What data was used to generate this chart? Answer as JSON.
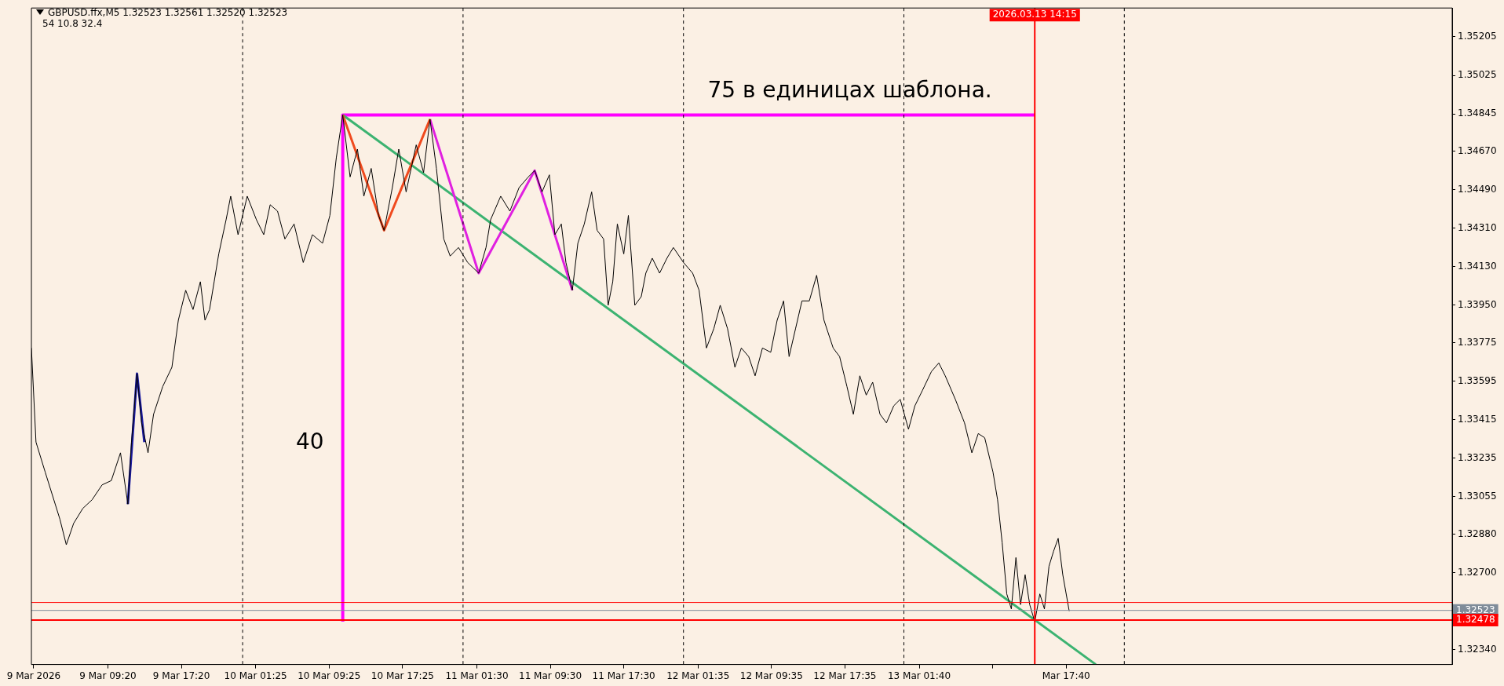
{
  "chart_data": {
    "type": "line",
    "title": "GBPUSD.ffx,M5  1.32523 1.32561 1.32520 1.32523",
    "subtitle": "54  10.8  32.4",
    "xlim": [
      "2026-03-09T01:00",
      "2026-03-15T11:42"
    ],
    "ylim": [
      1.3227,
      1.3534
    ],
    "xticks": [
      {
        "value": "2026-03-09T01:15",
        "label": "9 Mar 2026"
      },
      {
        "value": "2026-03-09T09:20",
        "label": "9 Mar 09:20"
      },
      {
        "value": "2026-03-09T17:20",
        "label": "9 Mar 17:20"
      },
      {
        "value": "2026-03-10T01:25",
        "label": "10 Mar 01:25"
      },
      {
        "value": "2026-03-10T09:25",
        "label": "10 Mar 09:25"
      },
      {
        "value": "2026-03-10T17:25",
        "label": "10 Mar 17:25"
      },
      {
        "value": "2026-03-11T01:30",
        "label": "11 Mar 01:30"
      },
      {
        "value": "2026-03-11T09:30",
        "label": "11 Mar 09:30"
      },
      {
        "value": "2026-03-11T17:30",
        "label": "11 Mar 17:30"
      },
      {
        "value": "2026-03-12T01:35",
        "label": "12 Mar 01:35"
      },
      {
        "value": "2026-03-12T09:35",
        "label": "12 Mar 09:35"
      },
      {
        "value": "2026-03-12T17:35",
        "label": "12 Mar 17:35"
      },
      {
        "value": "2026-03-13T01:40",
        "label": "13 Mar 01:40"
      },
      {
        "value": "2026-03-13T09:40",
        "label": null
      },
      {
        "value": "2026-03-13T17:40",
        "label": "Mar 17:40"
      }
    ],
    "yticks": [
      {
        "value": 1.35205,
        "label": "1.35205"
      },
      {
        "value": 1.35025,
        "label": "1.35025"
      },
      {
        "value": 1.34845,
        "label": "1.34845"
      },
      {
        "value": 1.3467,
        "label": "1.34670"
      },
      {
        "value": 1.3449,
        "label": "1.34490"
      },
      {
        "value": 1.3431,
        "label": "1.34310"
      },
      {
        "value": 1.3413,
        "label": "1.34130"
      },
      {
        "value": 1.3395,
        "label": "1.33950"
      },
      {
        "value": 1.33775,
        "label": "1.33775"
      },
      {
        "value": 1.33595,
        "label": "1.33595"
      },
      {
        "value": 1.33415,
        "label": "1.33415"
      },
      {
        "value": 1.33235,
        "label": "1.33235"
      },
      {
        "value": 1.33055,
        "label": "1.33055"
      },
      {
        "value": 1.3288,
        "label": "1.32880"
      },
      {
        "value": 1.327,
        "label": "1.32700"
      },
      {
        "value": 1.3234,
        "label": "1.32340"
      }
    ],
    "grid": false,
    "legend": false,
    "marker": "none",
    "series": [
      {
        "color": "#000000",
        "x": [
          "2026-03-09T01:00",
          "2026-03-09T01:30",
          "2026-03-09T02:30",
          "2026-03-09T04:06",
          "2026-03-09T04:48",
          "2026-03-09T05:36",
          "2026-03-09T06:36",
          "2026-03-09T07:36",
          "2026-03-09T08:42",
          "2026-03-09T09:42",
          "2026-03-09T10:42",
          "2026-03-09T11:30",
          "2026-03-09T11:54",
          "2026-03-09T12:30",
          "2026-03-09T13:00",
          "2026-03-09T13:42",
          "2026-03-09T14:18",
          "2026-03-09T15:18",
          "2026-03-09T16:18",
          "2026-03-09T17:00",
          "2026-03-09T17:48",
          "2026-03-09T18:36",
          "2026-03-09T19:24",
          "2026-03-09T19:54",
          "2026-03-09T20:24",
          "2026-03-09T20:54",
          "2026-03-09T21:24",
          "2026-03-09T22:12",
          "2026-03-09T22:42",
          "2026-03-09T23:30",
          "2026-03-10T00:30",
          "2026-03-10T01:30",
          "2026-03-10T02:18",
          "2026-03-10T03:00",
          "2026-03-10T03:48",
          "2026-03-10T04:36",
          "2026-03-10T05:36",
          "2026-03-10T06:36",
          "2026-03-10T07:36",
          "2026-03-10T08:42",
          "2026-03-10T09:30",
          "2026-03-10T10:12",
          "2026-03-10T10:54",
          "2026-03-10T11:42",
          "2026-03-10T12:30",
          "2026-03-10T13:12",
          "2026-03-10T14:00",
          "2026-03-10T14:48",
          "2026-03-10T15:24",
          "2026-03-10T16:18",
          "2026-03-10T17:00",
          "2026-03-10T17:48",
          "2026-03-10T18:54",
          "2026-03-10T19:42",
          "2026-03-10T20:24",
          "2026-03-10T21:06",
          "2026-03-10T21:54",
          "2026-03-10T22:36",
          "2026-03-10T23:30",
          "2026-03-11T00:30",
          "2026-03-11T01:42",
          "2026-03-11T02:30",
          "2026-03-11T03:00",
          "2026-03-11T04:06",
          "2026-03-11T05:06",
          "2026-03-11T06:06",
          "2026-03-11T07:06",
          "2026-03-11T07:48",
          "2026-03-11T08:36",
          "2026-03-11T09:24",
          "2026-03-11T10:00",
          "2026-03-11T10:42",
          "2026-03-11T11:12",
          "2026-03-11T11:54",
          "2026-03-11T12:30",
          "2026-03-11T13:12",
          "2026-03-11T14:00",
          "2026-03-11T14:36",
          "2026-03-11T15:18",
          "2026-03-11T15:48",
          "2026-03-11T16:18",
          "2026-03-11T16:48",
          "2026-03-11T17:30",
          "2026-03-11T18:00",
          "2026-03-11T18:42",
          "2026-03-11T19:24",
          "2026-03-11T19:54",
          "2026-03-11T20:36",
          "2026-03-11T21:24",
          "2026-03-11T22:12",
          "2026-03-11T22:54",
          "2026-03-12T00:00",
          "2026-03-12T01:00",
          "2026-03-12T01:42",
          "2026-03-12T02:30",
          "2026-03-12T03:18",
          "2026-03-12T04:00",
          "2026-03-12T04:48",
          "2026-03-12T05:36",
          "2026-03-12T06:18",
          "2026-03-12T07:06",
          "2026-03-12T07:48",
          "2026-03-12T08:36",
          "2026-03-12T09:30",
          "2026-03-12T10:12",
          "2026-03-12T10:54",
          "2026-03-12T11:30",
          "2026-03-12T12:12",
          "2026-03-12T12:54",
          "2026-03-12T13:42",
          "2026-03-12T14:30",
          "2026-03-12T15:18",
          "2026-03-12T16:18",
          "2026-03-12T17:00",
          "2026-03-12T17:48",
          "2026-03-12T18:30",
          "2026-03-12T19:12",
          "2026-03-12T19:54",
          "2026-03-12T20:36",
          "2026-03-12T21:24",
          "2026-03-12T22:06",
          "2026-03-12T22:54",
          "2026-03-12T23:36",
          "2026-03-13T00:30",
          "2026-03-13T01:12",
          "2026-03-13T02:00",
          "2026-03-13T03:00",
          "2026-03-13T03:48",
          "2026-03-13T04:30",
          "2026-03-13T05:36",
          "2026-03-13T06:36",
          "2026-03-13T07:24",
          "2026-03-13T08:06",
          "2026-03-13T08:48",
          "2026-03-13T09:42",
          "2026-03-13T10:12",
          "2026-03-13T10:42",
          "2026-03-13T11:12",
          "2026-03-13T11:42",
          "2026-03-13T12:12",
          "2026-03-13T12:42",
          "2026-03-13T13:12",
          "2026-03-13T13:42",
          "2026-03-13T14:15",
          "2026-03-13T14:48",
          "2026-03-13T15:18",
          "2026-03-13T15:48",
          "2026-03-13T16:18",
          "2026-03-13T16:48",
          "2026-03-13T17:18",
          "2026-03-13T18:00"
        ],
        "values": [
          1.3375,
          1.3331,
          1.3317,
          1.3295,
          1.3283,
          1.3293,
          1.33,
          1.3304,
          1.3311,
          1.3313,
          1.3326,
          1.3302,
          1.3331,
          1.3363,
          1.334,
          1.3326,
          1.3344,
          1.3357,
          1.3366,
          1.3388,
          1.3402,
          1.3393,
          1.3406,
          1.3388,
          1.3393,
          1.3406,
          1.3419,
          1.3435,
          1.3446,
          1.3428,
          1.3446,
          1.3435,
          1.3428,
          1.3442,
          1.3439,
          1.3426,
          1.3433,
          1.3415,
          1.3428,
          1.3424,
          1.3437,
          1.3464,
          1.3484,
          1.3455,
          1.3468,
          1.3446,
          1.3459,
          1.3437,
          1.343,
          1.345,
          1.3468,
          1.3448,
          1.347,
          1.3457,
          1.3482,
          1.3459,
          1.3426,
          1.3418,
          1.3422,
          1.3415,
          1.341,
          1.3422,
          1.3435,
          1.3446,
          1.3439,
          1.345,
          1.3455,
          1.3458,
          1.3448,
          1.3456,
          1.3428,
          1.3433,
          1.3415,
          1.3402,
          1.3424,
          1.3433,
          1.3448,
          1.343,
          1.3426,
          1.3395,
          1.3406,
          1.3433,
          1.3419,
          1.3437,
          1.3395,
          1.3399,
          1.341,
          1.3417,
          1.341,
          1.3417,
          1.3422,
          1.3415,
          1.341,
          1.3402,
          1.3375,
          1.3384,
          1.3395,
          1.3384,
          1.3366,
          1.3375,
          1.3371,
          1.3362,
          1.3375,
          1.3373,
          1.3388,
          1.3397,
          1.3371,
          1.3384,
          1.3397,
          1.3397,
          1.3409,
          1.3388,
          1.3375,
          1.3371,
          1.3357,
          1.3344,
          1.3362,
          1.3353,
          1.3359,
          1.3344,
          1.334,
          1.3348,
          1.3351,
          1.3337,
          1.3348,
          1.3355,
          1.3364,
          1.3368,
          1.3362,
          1.3351,
          1.334,
          1.3326,
          1.3335,
          1.3333,
          1.3317,
          1.3304,
          1.3284,
          1.326,
          1.3253,
          1.3277,
          1.3255,
          1.3269,
          1.3255,
          1.3247,
          1.326,
          1.3253,
          1.3273,
          1.328,
          1.3286,
          1.3269,
          1.3252
        ]
      },
      {
        "color": "#1a1aa0",
        "x": [
          "2026-03-09T11:30",
          "2026-03-09T12:30",
          "2026-03-09T13:18"
        ],
        "values": [
          1.3302,
          1.3363,
          1.3331
        ]
      },
      {
        "color": "#f04a1e",
        "x": [
          "2026-03-10T10:54",
          "2026-03-10T15:24",
          "2026-03-10T20:24"
        ],
        "values": [
          1.3484,
          1.343,
          1.3482
        ]
      },
      {
        "color": "#e020e0",
        "x": [
          "2026-03-10T20:24",
          "2026-03-11T01:42",
          "2026-03-11T07:48",
          "2026-03-11T11:54"
        ],
        "values": [
          1.3482,
          1.341,
          1.3458,
          1.3402
        ]
      },
      {
        "color": "#3cb371",
        "x": [
          "2026-03-10T10:54",
          "2026-03-13T20:54"
        ],
        "values": [
          1.3484,
          1.3227
        ]
      },
      {
        "color": "#ff00ff",
        "x": [
          "2026-03-10T10:54",
          "2026-03-10T10:54",
          "2026-03-13T14:15"
        ],
        "values": [
          1.3247,
          1.3484,
          1.3484
        ]
      }
    ],
    "ref_lines": [
      {
        "axis": "x",
        "value": "2026-03-10T00:00",
        "label": null,
        "color": "#000000",
        "line_style": "dashed"
      },
      {
        "axis": "x",
        "value": "2026-03-11T00:00",
        "label": null,
        "color": "#000000",
        "line_style": "dashed"
      },
      {
        "axis": "x",
        "value": "2026-03-12T00:00",
        "label": null,
        "color": "#000000",
        "line_style": "dashed"
      },
      {
        "axis": "x",
        "value": "2026-03-13T00:00",
        "label": null,
        "color": "#000000",
        "line_style": "dashed"
      },
      {
        "axis": "x",
        "value": "2026-03-14T00:00",
        "label": null,
        "color": "#000000",
        "line_style": "dashed"
      },
      {
        "axis": "x",
        "value": "2026-03-13T14:15",
        "label": "2026.03.13 14:15",
        "color": "#ff0000",
        "line_style": "solid"
      },
      {
        "axis": "y",
        "value": 1.3256,
        "label": null,
        "color": "#ff0000",
        "line_style": "solid"
      },
      {
        "axis": "y",
        "value": 1.32523,
        "label": "1.32523",
        "color": "#7f8c99",
        "line_style": "solid"
      },
      {
        "axis": "y",
        "value": 1.32478,
        "label": "1.32478",
        "color": "#ff0000",
        "line_style": "solid"
      }
    ],
    "annotations": [
      "75 в единицах шаблона.",
      "40"
    ]
  }
}
